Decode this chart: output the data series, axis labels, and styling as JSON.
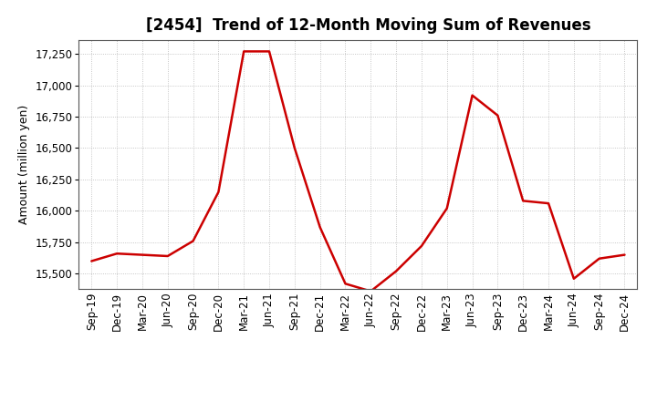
{
  "title": "[2454]  Trend of 12-Month Moving Sum of Revenues",
  "ylabel": "Amount (million yen)",
  "line_color": "#cc0000",
  "line_width": 1.8,
  "background_color": "#ffffff",
  "plot_bg_color": "#ffffff",
  "grid_color": "#888888",
  "x_labels": [
    "Sep-19",
    "Dec-19",
    "Mar-20",
    "Jun-20",
    "Sep-20",
    "Dec-20",
    "Mar-21",
    "Jun-21",
    "Sep-21",
    "Dec-21",
    "Mar-22",
    "Jun-22",
    "Sep-22",
    "Dec-22",
    "Mar-23",
    "Jun-23",
    "Sep-23",
    "Dec-23",
    "Mar-24",
    "Jun-24",
    "Sep-24",
    "Dec-24"
  ],
  "y_values": [
    15600,
    15660,
    15650,
    15640,
    15760,
    16150,
    17270,
    17270,
    16500,
    15870,
    15420,
    15360,
    15520,
    15720,
    16020,
    16920,
    16760,
    16080,
    16060,
    15460,
    15620,
    15650
  ],
  "ylim_min": 15380,
  "ylim_max": 17360,
  "yticks": [
    15500,
    15750,
    16000,
    16250,
    16500,
    16750,
    17000,
    17250
  ],
  "title_fontsize": 12,
  "axis_fontsize": 9,
  "tick_fontsize": 8.5
}
